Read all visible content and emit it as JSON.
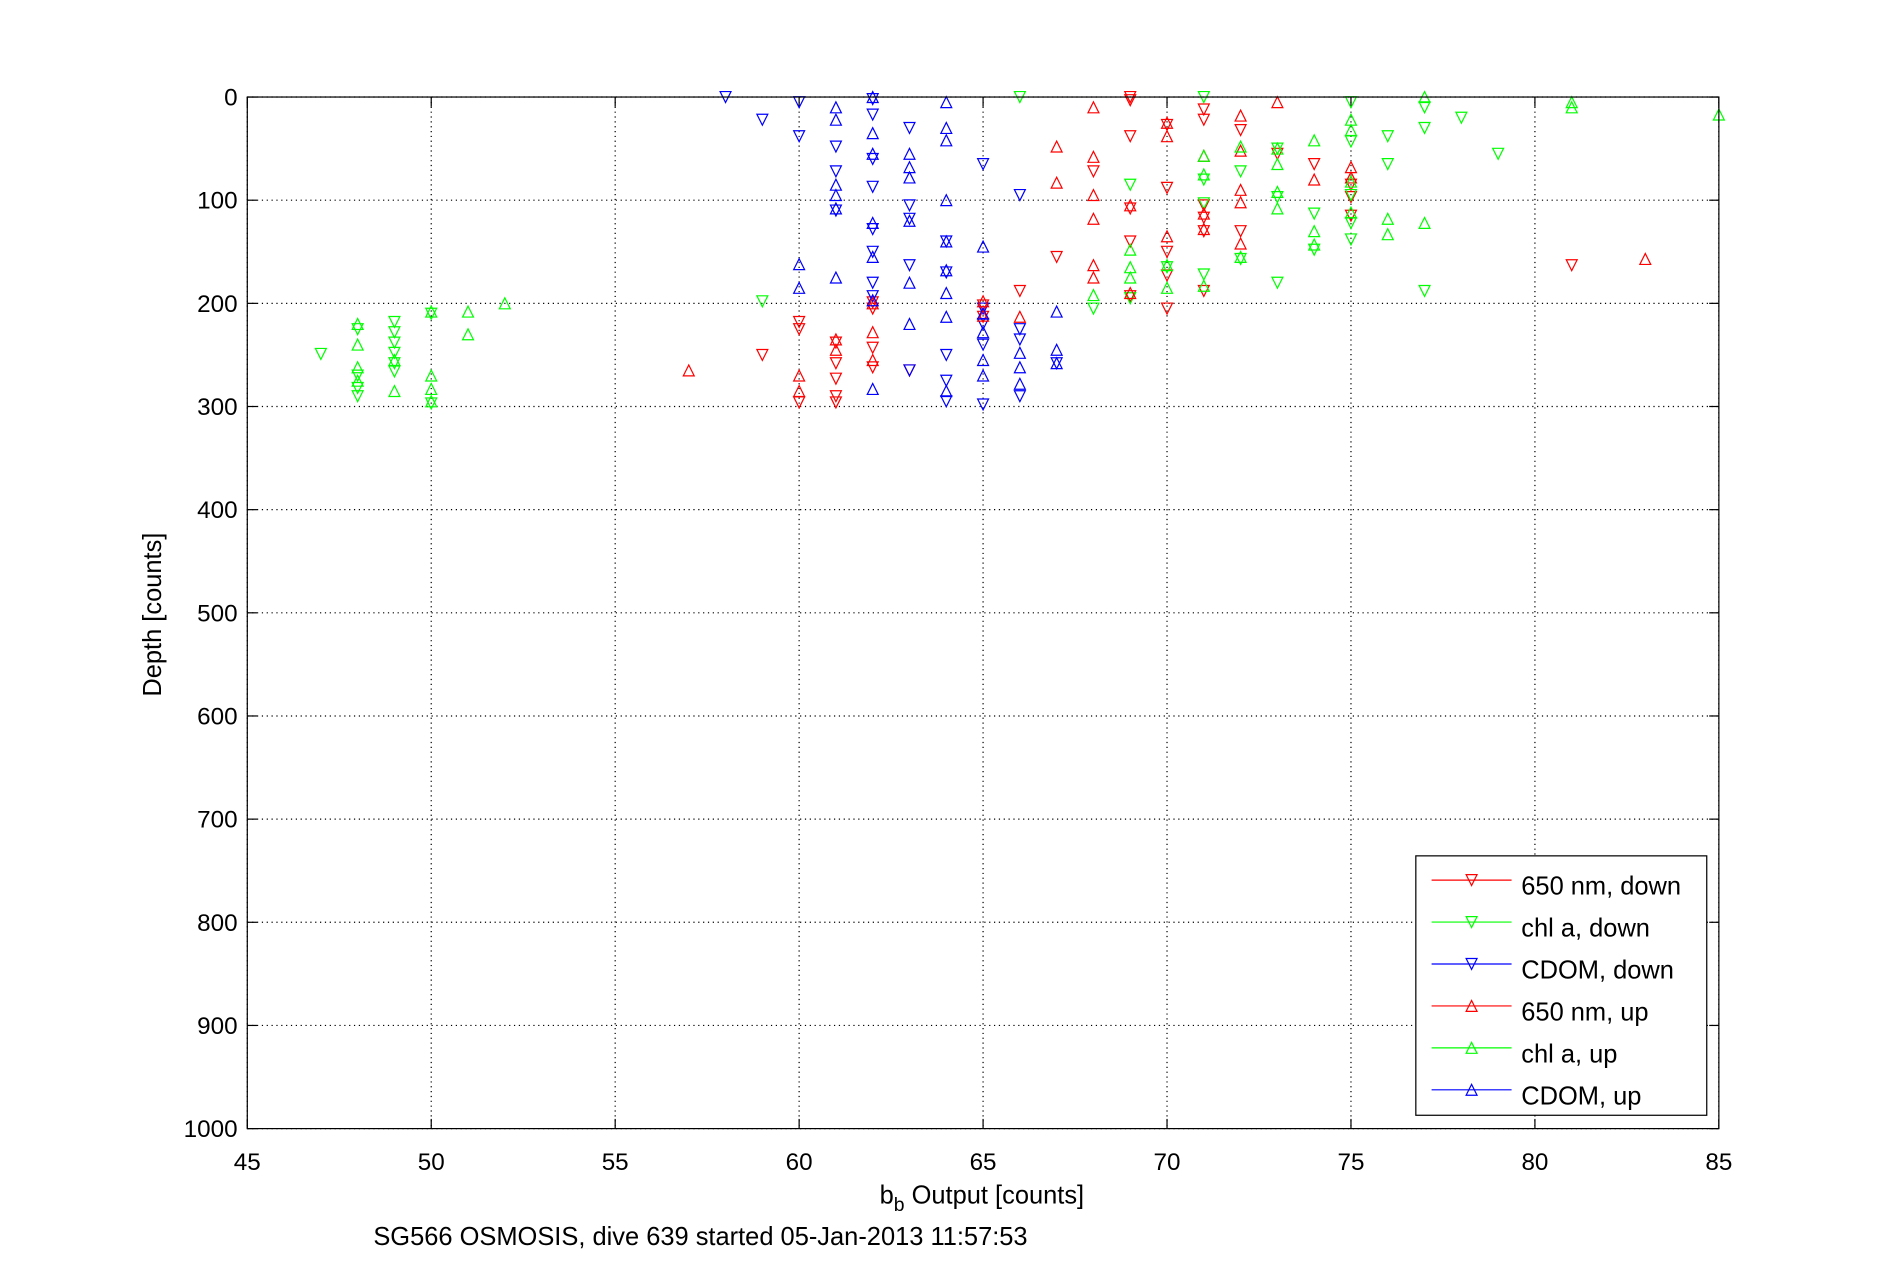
{
  "chart_data": {
    "type": "scatter",
    "title": "SG566 OSMOSIS, dive 639 started 05-Jan-2013 11:57:53",
    "xlabel": {
      "main": "b",
      "sub": "b",
      "rest": " Output [counts]"
    },
    "ylabel": "Depth [counts]",
    "xlim": [
      45,
      85
    ],
    "ylim": [
      0,
      1000
    ],
    "y_reversed": true,
    "grid": true,
    "legend_position": "bottom-right",
    "xticks": [
      "45",
      "50",
      "55",
      "60",
      "65",
      "70",
      "75",
      "80",
      "85"
    ],
    "yticks": [
      "0",
      "100",
      "200",
      "300",
      "400",
      "500",
      "600",
      "700",
      "800",
      "900",
      "1000"
    ],
    "series": [
      {
        "name": "650 nm, down",
        "color": "#ff0000",
        "marker": "triangle-down",
        "points": [
          [
            59,
            250
          ],
          [
            60,
            218
          ],
          [
            60,
            225
          ],
          [
            60,
            296
          ],
          [
            61,
            238
          ],
          [
            61,
            258
          ],
          [
            61,
            273
          ],
          [
            61,
            290
          ],
          [
            61,
            296
          ],
          [
            62,
            199
          ],
          [
            62,
            205
          ],
          [
            62,
            243
          ],
          [
            62,
            262
          ],
          [
            63,
            265
          ],
          [
            65,
            202
          ],
          [
            65,
            213
          ],
          [
            66,
            188
          ],
          [
            67,
            155
          ],
          [
            68,
            72
          ],
          [
            69,
            0
          ],
          [
            69,
            3
          ],
          [
            69,
            38
          ],
          [
            69,
            108
          ],
          [
            69,
            140
          ],
          [
            69,
            193
          ],
          [
            70,
            27
          ],
          [
            70,
            88
          ],
          [
            70,
            150
          ],
          [
            70,
            173
          ],
          [
            70,
            205
          ],
          [
            71,
            12
          ],
          [
            71,
            22
          ],
          [
            71,
            105
          ],
          [
            71,
            117
          ],
          [
            71,
            130
          ],
          [
            71,
            188
          ],
          [
            72,
            32
          ],
          [
            72,
            130
          ],
          [
            73,
            55
          ],
          [
            74,
            65
          ],
          [
            75,
            85
          ],
          [
            75,
            97
          ],
          [
            75,
            115
          ],
          [
            81,
            163
          ]
        ]
      },
      {
        "name": "chl a, down",
        "color": "#00ff00",
        "marker": "triangle-down",
        "points": [
          [
            47,
            249
          ],
          [
            48,
            225
          ],
          [
            48,
            270
          ],
          [
            48,
            282
          ],
          [
            48,
            290
          ],
          [
            49,
            218
          ],
          [
            49,
            228
          ],
          [
            49,
            238
          ],
          [
            49,
            248
          ],
          [
            49,
            258
          ],
          [
            49,
            266
          ],
          [
            50,
            210
          ],
          [
            50,
            297
          ],
          [
            59,
            198
          ],
          [
            66,
            0
          ],
          [
            68,
            205
          ],
          [
            69,
            85
          ],
          [
            69,
            195
          ],
          [
            70,
            165
          ],
          [
            71,
            0
          ],
          [
            71,
            80
          ],
          [
            71,
            103
          ],
          [
            71,
            172
          ],
          [
            72,
            72
          ],
          [
            72,
            157
          ],
          [
            73,
            50
          ],
          [
            73,
            97
          ],
          [
            73,
            180
          ],
          [
            74,
            113
          ],
          [
            74,
            148
          ],
          [
            75,
            5
          ],
          [
            75,
            43
          ],
          [
            75,
            95
          ],
          [
            75,
            122
          ],
          [
            75,
            138
          ],
          [
            76,
            38
          ],
          [
            76,
            65
          ],
          [
            77,
            10
          ],
          [
            77,
            30
          ],
          [
            77,
            188
          ],
          [
            78,
            20
          ],
          [
            79,
            55
          ]
        ]
      },
      {
        "name": "CDOM, down",
        "color": "#0000ff",
        "marker": "triangle-down",
        "points": [
          [
            58,
            0
          ],
          [
            59,
            22
          ],
          [
            60,
            5
          ],
          [
            60,
            38
          ],
          [
            61,
            48
          ],
          [
            61,
            72
          ],
          [
            61,
            110
          ],
          [
            62,
            2
          ],
          [
            62,
            17
          ],
          [
            62,
            60
          ],
          [
            62,
            87
          ],
          [
            62,
            128
          ],
          [
            62,
            150
          ],
          [
            62,
            180
          ],
          [
            62,
            193
          ],
          [
            63,
            30
          ],
          [
            63,
            105
          ],
          [
            63,
            118
          ],
          [
            63,
            163
          ],
          [
            63,
            265
          ],
          [
            64,
            140
          ],
          [
            64,
            170
          ],
          [
            64,
            250
          ],
          [
            64,
            275
          ],
          [
            64,
            295
          ],
          [
            65,
            65
          ],
          [
            65,
            205
          ],
          [
            65,
            220
          ],
          [
            65,
            240
          ],
          [
            65,
            298
          ],
          [
            66,
            95
          ],
          [
            66,
            225
          ],
          [
            66,
            235
          ],
          [
            66,
            290
          ],
          [
            67,
            258
          ]
        ]
      },
      {
        "name": "650 nm, up",
        "color": "#ff0000",
        "marker": "triangle-up",
        "points": [
          [
            57,
            265
          ],
          [
            60,
            270
          ],
          [
            60,
            285
          ],
          [
            61,
            235
          ],
          [
            61,
            245
          ],
          [
            62,
            200
          ],
          [
            62,
            228
          ],
          [
            62,
            255
          ],
          [
            65,
            198
          ],
          [
            65,
            212
          ],
          [
            66,
            213
          ],
          [
            67,
            48
          ],
          [
            67,
            83
          ],
          [
            68,
            10
          ],
          [
            68,
            58
          ],
          [
            68,
            95
          ],
          [
            68,
            118
          ],
          [
            68,
            163
          ],
          [
            68,
            175
          ],
          [
            69,
            105
          ],
          [
            69,
            190
          ],
          [
            70,
            25
          ],
          [
            70,
            38
          ],
          [
            70,
            135
          ],
          [
            71,
            57
          ],
          [
            71,
            113
          ],
          [
            71,
            128
          ],
          [
            72,
            18
          ],
          [
            72,
            52
          ],
          [
            72,
            90
          ],
          [
            72,
            102
          ],
          [
            72,
            142
          ],
          [
            73,
            5
          ],
          [
            74,
            80
          ],
          [
            75,
            68
          ],
          [
            75,
            78
          ],
          [
            83,
            157
          ]
        ]
      },
      {
        "name": "chl a, up",
        "color": "#00ff00",
        "marker": "triangle-up",
        "points": [
          [
            48,
            220
          ],
          [
            48,
            240
          ],
          [
            48,
            262
          ],
          [
            48,
            275
          ],
          [
            49,
            255
          ],
          [
            49,
            285
          ],
          [
            50,
            208
          ],
          [
            50,
            270
          ],
          [
            50,
            283
          ],
          [
            50,
            295
          ],
          [
            51,
            208
          ],
          [
            51,
            230
          ],
          [
            52,
            200
          ],
          [
            68,
            192
          ],
          [
            69,
            148
          ],
          [
            69,
            165
          ],
          [
            69,
            175
          ],
          [
            70,
            163
          ],
          [
            70,
            185
          ],
          [
            71,
            57
          ],
          [
            71,
            75
          ],
          [
            71,
            183
          ],
          [
            72,
            48
          ],
          [
            72,
            155
          ],
          [
            73,
            50
          ],
          [
            73,
            65
          ],
          [
            73,
            92
          ],
          [
            73,
            108
          ],
          [
            74,
            42
          ],
          [
            74,
            130
          ],
          [
            74,
            143
          ],
          [
            75,
            22
          ],
          [
            75,
            32
          ],
          [
            75,
            82
          ],
          [
            75,
            112
          ],
          [
            76,
            118
          ],
          [
            76,
            133
          ],
          [
            77,
            0
          ],
          [
            77,
            122
          ],
          [
            81,
            5
          ],
          [
            81,
            10
          ],
          [
            85,
            17
          ]
        ]
      },
      {
        "name": "CDOM, up",
        "color": "#0000ff",
        "marker": "triangle-up",
        "points": [
          [
            60,
            162
          ],
          [
            60,
            185
          ],
          [
            61,
            10
          ],
          [
            61,
            22
          ],
          [
            61,
            85
          ],
          [
            61,
            95
          ],
          [
            61,
            108
          ],
          [
            61,
            175
          ],
          [
            62,
            0
          ],
          [
            62,
            35
          ],
          [
            62,
            55
          ],
          [
            62,
            122
          ],
          [
            62,
            155
          ],
          [
            62,
            197
          ],
          [
            62,
            283
          ],
          [
            63,
            55
          ],
          [
            63,
            68
          ],
          [
            63,
            78
          ],
          [
            63,
            120
          ],
          [
            63,
            180
          ],
          [
            63,
            220
          ],
          [
            64,
            5
          ],
          [
            64,
            30
          ],
          [
            64,
            42
          ],
          [
            64,
            100
          ],
          [
            64,
            140
          ],
          [
            64,
            168
          ],
          [
            64,
            190
          ],
          [
            64,
            213
          ],
          [
            64,
            285
          ],
          [
            65,
            145
          ],
          [
            65,
            210
          ],
          [
            65,
            228
          ],
          [
            65,
            255
          ],
          [
            65,
            270
          ],
          [
            66,
            248
          ],
          [
            66,
            262
          ],
          [
            66,
            278
          ],
          [
            67,
            208
          ],
          [
            67,
            245
          ],
          [
            67,
            258
          ]
        ]
      }
    ]
  }
}
